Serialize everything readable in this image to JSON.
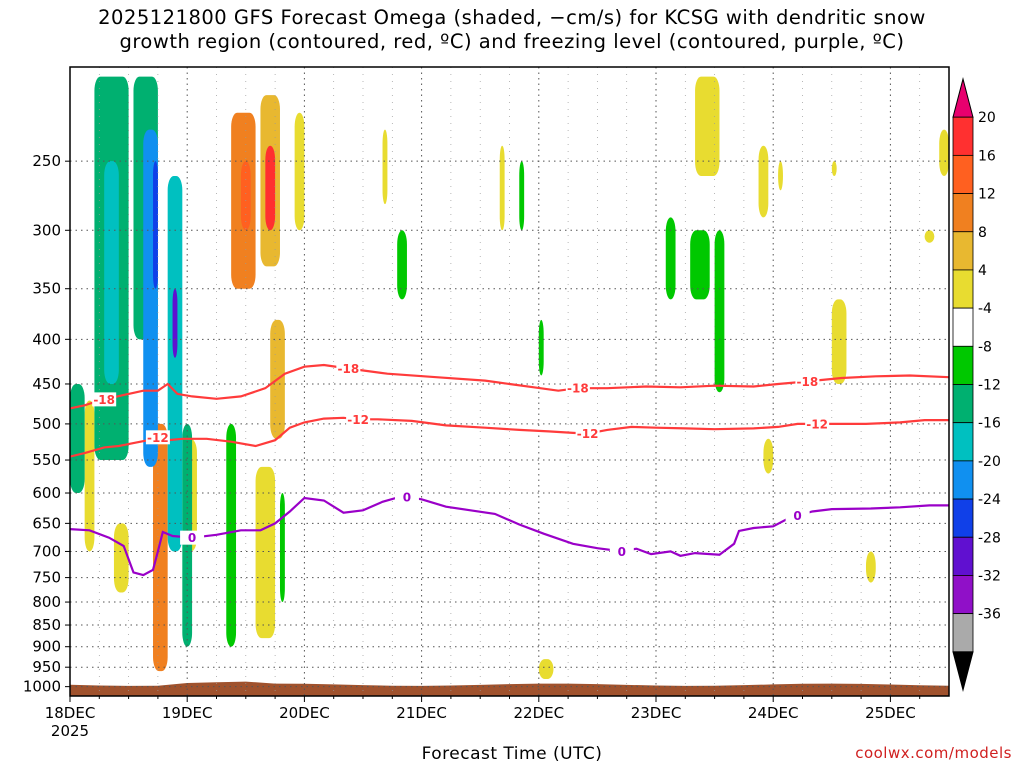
{
  "title": {
    "line1": "2025121800 GFS Forecast Omega (shaded, −cm/s) for KCSG with dendritic snow",
    "line2": "growth region (contoured, red, ºC) and freezing level (contoured, purple, ºC)"
  },
  "credit": "coolwx.com/models",
  "colors": {
    "dendritic_contour": "#ff3b3b",
    "freezing_contour": "#9a00c8",
    "ground": "#a0522d",
    "grid": "#555555"
  },
  "chart_data": {
    "type": "heatmap",
    "xlabel": "Forecast Time (UTC)",
    "ylabel": "",
    "x_ticks": [
      "18DEC",
      "19DEC",
      "20DEC",
      "21DEC",
      "22DEC",
      "23DEC",
      "24DEC",
      "25DEC"
    ],
    "x_tick_hours": [
      0,
      24,
      48,
      72,
      96,
      120,
      144,
      168
    ],
    "x_first_tick_year": "2025",
    "xlim_hours": [
      0,
      180
    ],
    "y_ticks": [
      250,
      300,
      350,
      400,
      450,
      500,
      550,
      600,
      650,
      700,
      750,
      800,
      850,
      900,
      950,
      1000
    ],
    "ylim_hpa": [
      195,
      1025
    ],
    "y_scale": "log-pressure",
    "grid": true,
    "colorbar": {
      "levels": [
        20,
        16,
        12,
        8,
        4,
        -4,
        -8,
        -12,
        -16,
        -20,
        -24,
        -28,
        -32,
        -36
      ],
      "colors": [
        "#e8006e",
        "#ff3030",
        "#ff6020",
        "#f08020",
        "#e8b830",
        "#e8dc30",
        "#ffffff",
        "#00c800",
        "#00b070",
        "#00c0c0",
        "#1090f0",
        "#1040e8",
        "#6010d0",
        "#9010c8",
        "#aaaaaa",
        "#000000"
      ]
    },
    "contours": [
      {
        "name": "-18",
        "color": "#ff3b3b",
        "labels": [
          {
            "hour": 7,
            "text": "-18"
          },
          {
            "hour": 57,
            "text": "-18"
          },
          {
            "hour": 104,
            "text": "-18"
          },
          {
            "hour": 151,
            "text": "-18"
          }
        ],
        "points": [
          [
            0,
            480
          ],
          [
            3,
            476
          ],
          [
            6,
            470
          ],
          [
            9,
            466
          ],
          [
            12,
            462
          ],
          [
            15,
            458
          ],
          [
            18,
            458
          ],
          [
            20,
            450
          ],
          [
            22,
            462
          ],
          [
            25,
            465
          ],
          [
            30,
            468
          ],
          [
            35,
            465
          ],
          [
            40,
            455
          ],
          [
            44,
            438
          ],
          [
            48,
            430
          ],
          [
            52,
            428
          ],
          [
            57,
            432
          ],
          [
            65,
            438
          ],
          [
            75,
            442
          ],
          [
            85,
            446
          ],
          [
            90,
            450
          ],
          [
            95,
            454
          ],
          [
            100,
            458
          ],
          [
            104,
            455
          ],
          [
            110,
            455
          ],
          [
            118,
            453
          ],
          [
            125,
            454
          ],
          [
            132,
            452
          ],
          [
            140,
            453
          ],
          [
            145,
            450
          ],
          [
            151,
            447
          ],
          [
            158,
            443
          ],
          [
            165,
            441
          ],
          [
            172,
            440
          ],
          [
            180,
            442
          ]
        ]
      },
      {
        "name": "-12",
        "color": "#ff3b3b",
        "labels": [
          {
            "hour": 18,
            "text": "-12"
          },
          {
            "hour": 59,
            "text": "-12"
          },
          {
            "hour": 106,
            "text": "-12"
          },
          {
            "hour": 153,
            "text": "-12"
          }
        ],
        "points": [
          [
            0,
            545
          ],
          [
            3,
            540
          ],
          [
            7,
            532
          ],
          [
            10,
            530
          ],
          [
            13,
            526
          ],
          [
            16,
            522
          ],
          [
            18,
            518
          ],
          [
            20,
            522
          ],
          [
            23,
            520
          ],
          [
            28,
            520
          ],
          [
            33,
            524
          ],
          [
            38,
            530
          ],
          [
            42,
            522
          ],
          [
            45,
            505
          ],
          [
            48,
            498
          ],
          [
            52,
            493
          ],
          [
            56,
            492
          ],
          [
            59,
            494
          ],
          [
            63,
            494
          ],
          [
            70,
            496
          ],
          [
            77,
            502
          ],
          [
            85,
            505
          ],
          [
            92,
            508
          ],
          [
            98,
            510
          ],
          [
            103,
            512
          ],
          [
            106,
            513
          ],
          [
            110,
            508
          ],
          [
            115,
            504
          ],
          [
            120,
            505
          ],
          [
            126,
            506
          ],
          [
            132,
            507
          ],
          [
            140,
            506
          ],
          [
            145,
            504
          ],
          [
            149,
            500
          ],
          [
            153,
            500
          ],
          [
            157,
            500
          ],
          [
            163,
            500
          ],
          [
            170,
            498
          ],
          [
            175,
            495
          ],
          [
            180,
            495
          ]
        ]
      },
      {
        "name": "0",
        "color": "#9a00c8",
        "labels": [
          {
            "hour": 25,
            "text": "0"
          },
          {
            "hour": 69,
            "text": "0"
          },
          {
            "hour": 113,
            "text": "0"
          },
          {
            "hour": 149,
            "text": "0"
          }
        ],
        "points": [
          [
            0,
            660
          ],
          [
            4,
            662
          ],
          [
            8,
            675
          ],
          [
            11,
            690
          ],
          [
            13,
            740
          ],
          [
            15,
            745
          ],
          [
            17,
            735
          ],
          [
            18,
            700
          ],
          [
            19,
            665
          ],
          [
            21,
            672
          ],
          [
            25,
            675
          ],
          [
            30,
            670
          ],
          [
            35,
            662
          ],
          [
            39,
            662
          ],
          [
            42,
            650
          ],
          [
            45,
            630
          ],
          [
            48,
            608
          ],
          [
            52,
            612
          ],
          [
            56,
            632
          ],
          [
            60,
            628
          ],
          [
            64,
            614
          ],
          [
            68,
            605
          ],
          [
            72,
            610
          ],
          [
            77,
            622
          ],
          [
            82,
            628
          ],
          [
            87,
            634
          ],
          [
            92,
            652
          ],
          [
            97,
            668
          ],
          [
            103,
            686
          ],
          [
            108,
            694
          ],
          [
            113,
            700
          ],
          [
            116,
            695
          ],
          [
            119,
            705
          ],
          [
            123,
            700
          ],
          [
            125,
            708
          ],
          [
            128,
            703
          ],
          [
            133,
            706
          ],
          [
            136,
            686
          ],
          [
            137,
            663
          ],
          [
            140,
            658
          ],
          [
            144,
            655
          ],
          [
            147,
            642
          ],
          [
            149,
            637
          ],
          [
            152,
            630
          ],
          [
            156,
            626
          ],
          [
            164,
            625
          ],
          [
            170,
            623
          ],
          [
            176,
            620
          ],
          [
            180,
            620
          ]
        ]
      }
    ],
    "omega_positive_regions": [
      {
        "h0": 3,
        "h1": 5,
        "p0": 470,
        "p1": 700,
        "value": 4
      },
      {
        "h0": 9,
        "h1": 12,
        "p0": 650,
        "p1": 780,
        "value": 6
      },
      {
        "h0": 17,
        "h1": 20,
        "p0": 500,
        "p1": 960,
        "value": 12
      },
      {
        "h0": 23,
        "h1": 26,
        "p0": 520,
        "p1": 700,
        "value": 4
      },
      {
        "h0": 33,
        "h1": 38,
        "p0": 220,
        "p1": 350,
        "value": 12
      },
      {
        "h0": 35,
        "h1": 37,
        "p0": 250,
        "p1": 300,
        "value": 18
      },
      {
        "h0": 39,
        "h1": 43,
        "p0": 210,
        "p1": 330,
        "value": 8
      },
      {
        "h0": 40,
        "h1": 42,
        "p0": 240,
        "p1": 300,
        "value": 20
      },
      {
        "h0": 41,
        "h1": 44,
        "p0": 380,
        "p1": 520,
        "value": 10
      },
      {
        "h0": 38,
        "h1": 42,
        "p0": 560,
        "p1": 880,
        "value": 6
      },
      {
        "h0": 46,
        "h1": 48,
        "p0": 220,
        "p1": 300,
        "value": 4
      },
      {
        "h0": 64,
        "h1": 65,
        "p0": 230,
        "p1": 280,
        "value": 4
      },
      {
        "h0": 88,
        "h1": 89,
        "p0": 240,
        "p1": 300,
        "value": 4
      },
      {
        "h0": 96,
        "h1": 99,
        "p0": 930,
        "p1": 980,
        "value": 4
      },
      {
        "h0": 128,
        "h1": 133,
        "p0": 200,
        "p1": 260,
        "value": 4
      },
      {
        "h0": 141,
        "h1": 143,
        "p0": 240,
        "p1": 290,
        "value": 4
      },
      {
        "h0": 142,
        "h1": 144,
        "p0": 520,
        "p1": 570,
        "value": 4
      },
      {
        "h0": 156,
        "h1": 159,
        "p0": 360,
        "p1": 450,
        "value": 4
      },
      {
        "h0": 163,
        "h1": 165,
        "p0": 700,
        "p1": 760,
        "value": 4
      },
      {
        "h0": 175,
        "h1": 177,
        "p0": 300,
        "p1": 310,
        "value": 4
      },
      {
        "h0": 178,
        "h1": 180,
        "p0": 230,
        "p1": 260,
        "value": 4
      },
      {
        "h0": 156,
        "h1": 157,
        "p0": 250,
        "p1": 260,
        "value": 4
      },
      {
        "h0": 145,
        "h1": 146,
        "p0": 250,
        "p1": 270,
        "value": 4
      }
    ],
    "omega_negative_regions": [
      {
        "h0": 0,
        "h1": 3,
        "p0": 450,
        "p1": 600,
        "value": -8
      },
      {
        "h0": 5,
        "h1": 12,
        "p0": 200,
        "p1": 550,
        "value": -8
      },
      {
        "h0": 7,
        "h1": 10,
        "p0": 250,
        "p1": 450,
        "value": -14
      },
      {
        "h0": 13,
        "h1": 18,
        "p0": 200,
        "p1": 400,
        "value": -8
      },
      {
        "h0": 15,
        "h1": 18,
        "p0": 230,
        "p1": 560,
        "value": -16
      },
      {
        "h0": 17,
        "h1": 18,
        "p0": 250,
        "p1": 350,
        "value": -22
      },
      {
        "h0": 20,
        "h1": 23,
        "p0": 260,
        "p1": 700,
        "value": -12
      },
      {
        "h0": 21,
        "h1": 22,
        "p0": 350,
        "p1": 420,
        "value": -26
      },
      {
        "h0": 23,
        "h1": 25,
        "p0": 500,
        "p1": 900,
        "value": -8
      },
      {
        "h0": 32,
        "h1": 34,
        "p0": 500,
        "p1": 900,
        "value": -6
      },
      {
        "h0": 43,
        "h1": 44,
        "p0": 600,
        "p1": 800,
        "value": -6
      },
      {
        "h0": 67,
        "h1": 69,
        "p0": 300,
        "p1": 360,
        "value": -6
      },
      {
        "h0": 92,
        "h1": 93,
        "p0": 250,
        "p1": 300,
        "value": -6
      },
      {
        "h0": 96,
        "h1": 97,
        "p0": 380,
        "p1": 440,
        "value": -6
      },
      {
        "h0": 122,
        "h1": 124,
        "p0": 290,
        "p1": 360,
        "value": -6
      },
      {
        "h0": 127,
        "h1": 131,
        "p0": 300,
        "p1": 360,
        "value": -6
      },
      {
        "h0": 132,
        "h1": 134,
        "p0": 300,
        "p1": 460,
        "value": -6
      }
    ]
  }
}
